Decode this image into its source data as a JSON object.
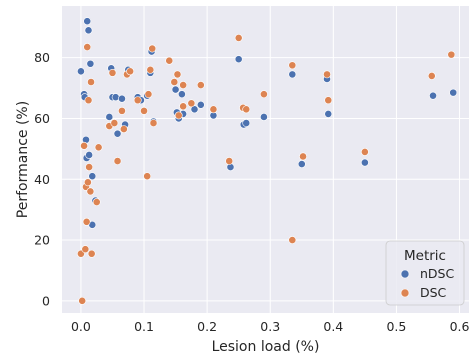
{
  "chart_data": {
    "type": "scatter",
    "xlabel": "Lesion load (%)",
    "ylabel": "Performance (%)",
    "xlim": [
      -0.03,
      0.615
    ],
    "ylim": [
      -4,
      97
    ],
    "xticks": [
      0.0,
      0.1,
      0.2,
      0.3,
      0.4,
      0.5,
      0.6
    ],
    "xtick_labels": [
      "0.0",
      "0.1",
      "0.2",
      "0.3",
      "0.4",
      "0.5",
      "0.6"
    ],
    "yticks": [
      0,
      20,
      40,
      60,
      80
    ],
    "ytick_labels": [
      "0",
      "20",
      "40",
      "60",
      "80"
    ],
    "grid": true,
    "background": "#eaeaf2",
    "legend": {
      "title": "Metric",
      "position": "bottom-right"
    },
    "series": [
      {
        "name": "nDSC",
        "color": "#4c72b0",
        "points": [
          [
            0.0,
            75.5
          ],
          [
            0.005,
            68.0
          ],
          [
            0.006,
            67.0
          ],
          [
            0.008,
            53.0
          ],
          [
            0.009,
            47.0
          ],
          [
            0.01,
            92.0
          ],
          [
            0.012,
            89.0
          ],
          [
            0.013,
            48.0
          ],
          [
            0.015,
            78.0
          ],
          [
            0.018,
            41.0
          ],
          [
            0.018,
            25.0
          ],
          [
            0.023,
            33.0
          ],
          [
            0.045,
            60.5
          ],
          [
            0.048,
            76.5
          ],
          [
            0.05,
            67.0
          ],
          [
            0.055,
            67.0
          ],
          [
            0.058,
            55.0
          ],
          [
            0.065,
            66.5
          ],
          [
            0.07,
            58.0
          ],
          [
            0.075,
            76.0
          ],
          [
            0.078,
            75.5
          ],
          [
            0.09,
            67.0
          ],
          [
            0.095,
            66.0
          ],
          [
            0.105,
            67.5
          ],
          [
            0.11,
            75.0
          ],
          [
            0.112,
            82.0
          ],
          [
            0.115,
            59.0
          ],
          [
            0.14,
            79.0
          ],
          [
            0.15,
            69.5
          ],
          [
            0.152,
            62.0
          ],
          [
            0.155,
            60.0
          ],
          [
            0.16,
            68.0
          ],
          [
            0.162,
            61.5
          ],
          [
            0.18,
            63.0
          ],
          [
            0.19,
            64.5
          ],
          [
            0.21,
            61.0
          ],
          [
            0.237,
            44.0
          ],
          [
            0.25,
            79.5
          ],
          [
            0.258,
            58.0
          ],
          [
            0.262,
            58.5
          ],
          [
            0.29,
            60.5
          ],
          [
            0.335,
            74.5
          ],
          [
            0.35,
            45.0
          ],
          [
            0.39,
            73.0
          ],
          [
            0.392,
            61.5
          ],
          [
            0.45,
            45.5
          ],
          [
            0.558,
            67.5
          ],
          [
            0.59,
            68.5
          ]
        ]
      },
      {
        "name": "DSC",
        "color": "#dd8452",
        "points": [
          [
            0.0,
            15.5
          ],
          [
            0.002,
            0.0
          ],
          [
            0.005,
            51.0
          ],
          [
            0.007,
            17.0
          ],
          [
            0.008,
            37.5
          ],
          [
            0.009,
            26.0
          ],
          [
            0.01,
            83.5
          ],
          [
            0.011,
            39.0
          ],
          [
            0.012,
            66.0
          ],
          [
            0.013,
            44.0
          ],
          [
            0.015,
            36.0
          ],
          [
            0.016,
            72.0
          ],
          [
            0.017,
            15.5
          ],
          [
            0.025,
            32.5
          ],
          [
            0.028,
            50.5
          ],
          [
            0.045,
            57.5
          ],
          [
            0.05,
            75.0
          ],
          [
            0.053,
            58.5
          ],
          [
            0.058,
            46.0
          ],
          [
            0.065,
            62.5
          ],
          [
            0.068,
            56.5
          ],
          [
            0.073,
            74.5
          ],
          [
            0.078,
            75.5
          ],
          [
            0.09,
            66.0
          ],
          [
            0.1,
            62.5
          ],
          [
            0.105,
            41.0
          ],
          [
            0.107,
            68.0
          ],
          [
            0.11,
            76.0
          ],
          [
            0.113,
            83.0
          ],
          [
            0.115,
            58.5
          ],
          [
            0.14,
            79.0
          ],
          [
            0.148,
            72.0
          ],
          [
            0.153,
            74.5
          ],
          [
            0.155,
            61.0
          ],
          [
            0.162,
            71.0
          ],
          [
            0.162,
            64.0
          ],
          [
            0.175,
            65.0
          ],
          [
            0.19,
            71.0
          ],
          [
            0.21,
            63.0
          ],
          [
            0.235,
            46.0
          ],
          [
            0.25,
            86.5
          ],
          [
            0.257,
            63.5
          ],
          [
            0.262,
            63.0
          ],
          [
            0.29,
            68.0
          ],
          [
            0.335,
            77.5
          ],
          [
            0.335,
            20.0
          ],
          [
            0.352,
            47.5
          ],
          [
            0.39,
            74.5
          ],
          [
            0.392,
            66.0
          ],
          [
            0.45,
            49.0
          ],
          [
            0.556,
            74.0
          ],
          [
            0.587,
            81.0
          ]
        ]
      }
    ]
  }
}
